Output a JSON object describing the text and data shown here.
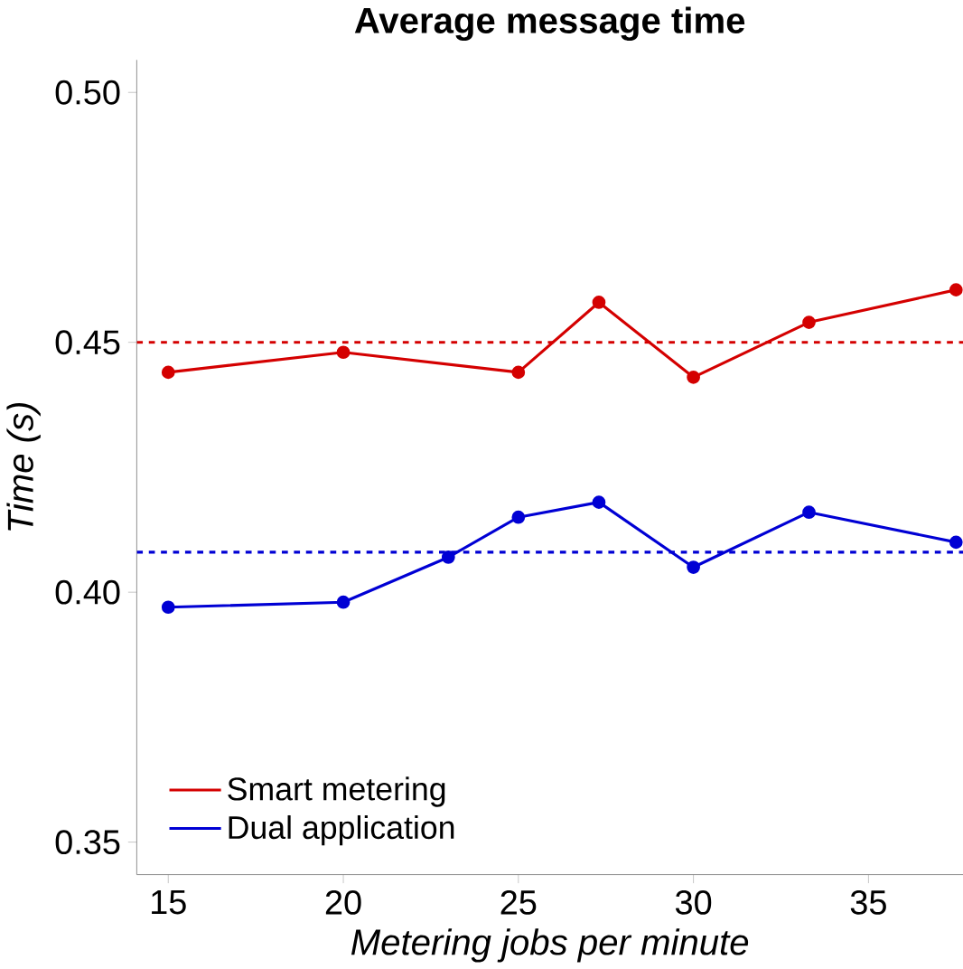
{
  "chart_data": {
    "type": "line",
    "title": "Average message time",
    "xlabel": "Metering jobs per minute",
    "ylabel": "Time (s)",
    "xlim": [
      14.1,
      37.7
    ],
    "xticks": [
      15,
      20,
      25,
      30,
      35
    ],
    "ylim": [
      0.3435,
      0.5065
    ],
    "yticks": [
      0.35,
      {
        "value": 0.4,
        "label": "0.40"
      },
      0.45,
      {
        "value": 0.5,
        "label": "0.50"
      }
    ],
    "grid": false,
    "legend": "bottom left",
    "marker": "circle",
    "line_style": "solid",
    "series": [
      {
        "name": "Smart metering",
        "color": "#d40000",
        "x": [
          15,
          20,
          25,
          27.3,
          30,
          33.3,
          37.5
        ],
        "values": [
          0.444,
          0.448,
          0.444,
          0.458,
          0.443,
          0.454,
          0.4605
        ]
      },
      {
        "name": "Dual application",
        "color": "#0000d4",
        "x": [
          15,
          20,
          23,
          25,
          27.3,
          30,
          33.3,
          37.5
        ],
        "values": [
          0.397,
          0.398,
          0.407,
          0.415,
          0.418,
          0.405,
          0.416,
          0.41
        ]
      }
    ],
    "ref_lines": [
      {
        "axis": "y",
        "value": 0.45,
        "color": "#d40000",
        "line_style": "dashed"
      },
      {
        "axis": "y",
        "value": 0.408,
        "color": "#0000d4",
        "line_style": "dashed"
      }
    ]
  }
}
